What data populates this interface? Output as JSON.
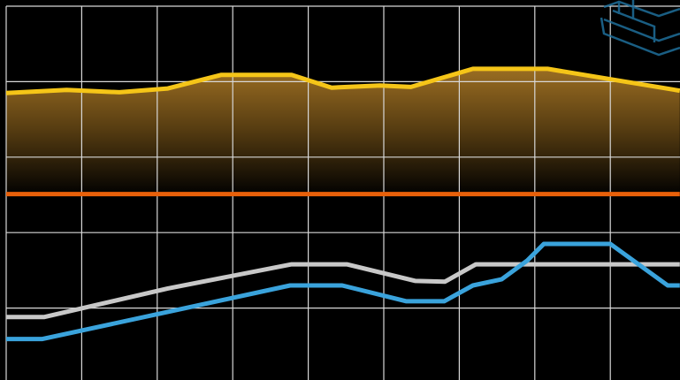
{
  "chart_data": {
    "type": "line",
    "xlim": [
      0,
      9
    ],
    "ylim": [
      0,
      5
    ],
    "xticks": [
      0,
      1,
      2,
      3,
      4,
      5,
      6,
      7,
      8
    ],
    "yticks": [
      1,
      2,
      3,
      4,
      5
    ],
    "grid": true,
    "series": [
      {
        "color": "#f5c518",
        "area": true,
        "x": [
          0,
          0.8,
          1.5,
          2.14,
          2.85,
          3.78,
          4.31,
          4.95,
          5.36,
          6.18,
          7.17,
          8.92
        ],
        "values": [
          3.85,
          3.89,
          3.86,
          3.91,
          4.09,
          4.09,
          3.92,
          3.95,
          3.93,
          4.17,
          4.17,
          3.88
        ]
      },
      {
        "color": "#e8600a",
        "x": [
          0,
          8.92
        ],
        "values": [
          2.51,
          2.51
        ]
      },
      {
        "color": "#c8c8c8",
        "x": [
          0,
          0.5,
          2.14,
          3.78,
          4.51,
          5.42,
          5.81,
          6.22,
          8.92
        ],
        "values": [
          0.88,
          0.88,
          1.26,
          1.58,
          1.58,
          1.36,
          1.35,
          1.58,
          1.58
        ]
      },
      {
        "color": "#3aa3dc",
        "x": [
          0,
          0.48,
          2.14,
          3.76,
          4.45,
          5.3,
          5.8,
          6.18,
          6.56,
          6.9,
          7.12,
          8.0,
          8.76,
          8.92
        ],
        "values": [
          0.59,
          0.59,
          0.95,
          1.3,
          1.3,
          1.09,
          1.09,
          1.3,
          1.38,
          1.63,
          1.85,
          1.85,
          1.3,
          1.3
        ]
      }
    ]
  }
}
